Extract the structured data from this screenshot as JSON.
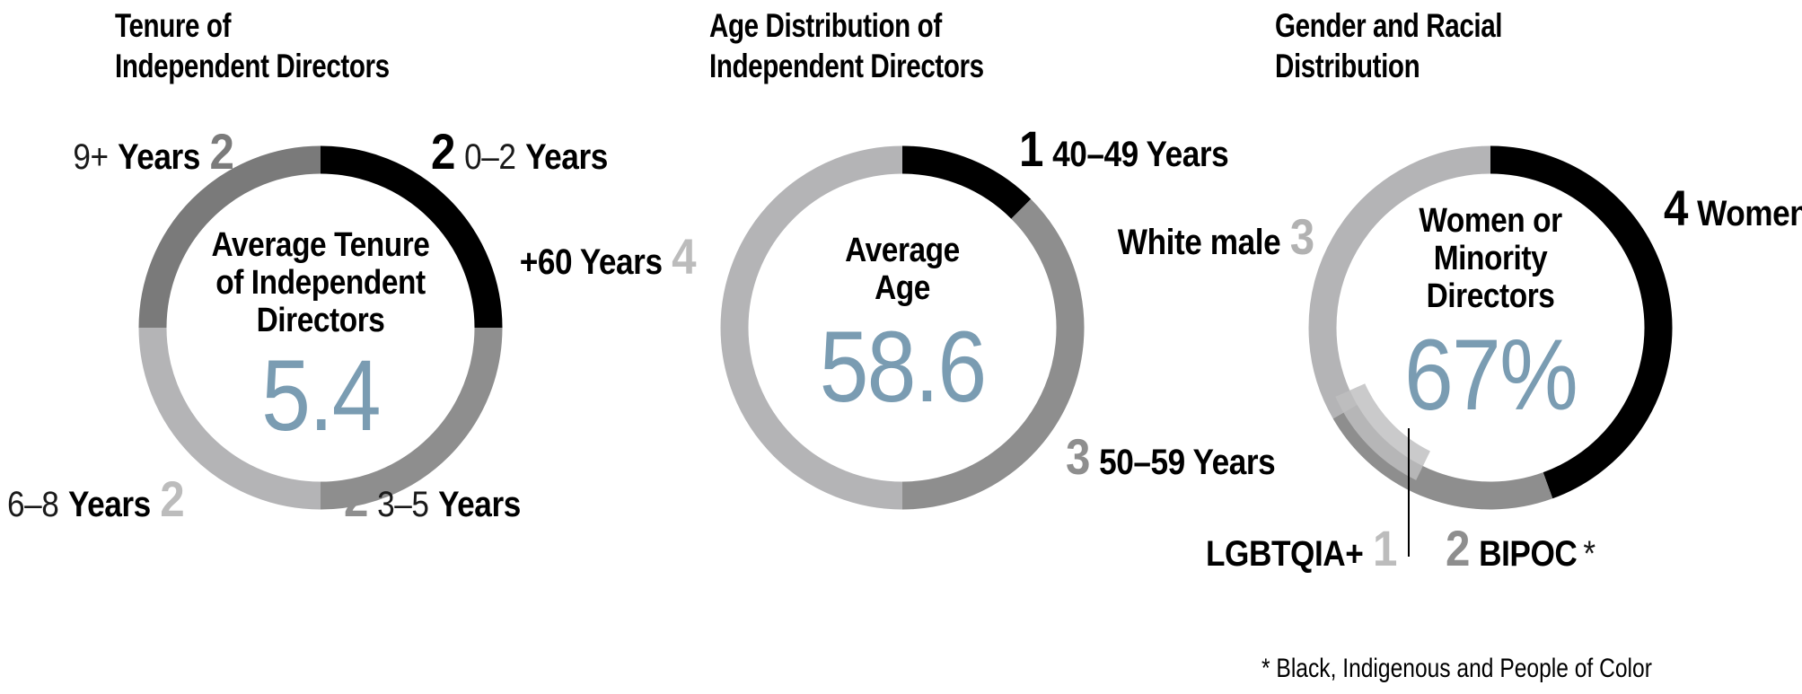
{
  "palette": {
    "accent_blue": "#7a9cb2",
    "black": "#000000",
    "dark_gray": "#7a7a7a",
    "mid_gray": "#8e8e8e",
    "light_gray": "#b4b4b6",
    "overlay_gray": "rgba(190,190,192,0.82)"
  },
  "footnote": "* Black, Indigenous and People of Color",
  "chart_data": [
    {
      "type": "donut",
      "title": "Tenure of Independent Directors",
      "title_lines": [
        "Tenure of",
        "Independent Directors"
      ],
      "center_label_lines": [
        "Average Tenure",
        "of Independent",
        "Directors"
      ],
      "center_value": "5.4",
      "total": 8,
      "segments": [
        {
          "name": "0-2-years",
          "value": 2,
          "color": "#000000",
          "label_number": "2",
          "label_number_color": "#000000",
          "label_range": "0–2",
          "label_word": "Years"
        },
        {
          "name": "3-5-years",
          "value": 2,
          "color": "#8e8e8e",
          "label_number": "2",
          "label_number_color": "#8e8e8e",
          "label_range": "3–5",
          "label_word": "Years"
        },
        {
          "name": "6-8-years",
          "value": 2,
          "color": "#b4b4b6",
          "label_number": "2",
          "label_number_color": "#bcbcbc",
          "label_range": "6–8",
          "label_word": "Years"
        },
        {
          "name": "9-plus-years",
          "value": 2,
          "color": "#7a7a7a",
          "label_number": "2",
          "label_number_color": "#7b7b7b",
          "label_range": "9+",
          "label_word": "Years"
        }
      ]
    },
    {
      "type": "donut",
      "title": "Age Distribution of Independent Directors",
      "title_lines": [
        "Age Distribution of",
        "Independent Directors"
      ],
      "center_label_lines": [
        "Average",
        "Age"
      ],
      "center_value": "58.6",
      "total": 8,
      "segments": [
        {
          "name": "40-49-years",
          "value": 1,
          "color": "#000000",
          "label_number": "1",
          "label_number_color": "#000000",
          "label_word": "40–49 Years"
        },
        {
          "name": "50-59-years",
          "value": 3,
          "color": "#8e8e8e",
          "label_number": "3",
          "label_number_color": "#8e8e8e",
          "label_word": "50–59 Years"
        },
        {
          "name": "60-plus-years",
          "value": 4,
          "color": "#b4b4b6",
          "label_number": "4",
          "label_number_color": "#bcbcbc",
          "label_word": "+60 Years"
        }
      ]
    },
    {
      "type": "donut",
      "title": "Gender and Racial Distribution",
      "title_lines": [
        "Gender and Racial",
        "Distribution"
      ],
      "center_label_lines": [
        "Women or",
        "Minority",
        "Directors"
      ],
      "center_value": "67%",
      "total": 9,
      "segments": [
        {
          "name": "women",
          "value": 4,
          "color": "#000000",
          "label_number": "4",
          "label_number_color": "#000000",
          "label_word": "Women"
        },
        {
          "name": "bipoc",
          "value": 2,
          "color": "#8e8e8e",
          "label_number": "2",
          "label_number_color": "#8e8e8e",
          "label_word": "BIPOC",
          "label_suffix": "*"
        },
        {
          "name": "white-male",
          "value": 3,
          "color": "#b4b4b6",
          "label_number": "3",
          "label_number_color": "#b2b2b2",
          "label_word": "White male"
        }
      ],
      "overlay": {
        "name": "lgbtqia",
        "value": 1,
        "color": "rgba(190,190,192,0.82)",
        "start_angle": 206,
        "end_angle": 246,
        "label_number": "1",
        "label_number_color": "#bcbcbc",
        "label_word": "LGBTQIA+"
      }
    }
  ]
}
